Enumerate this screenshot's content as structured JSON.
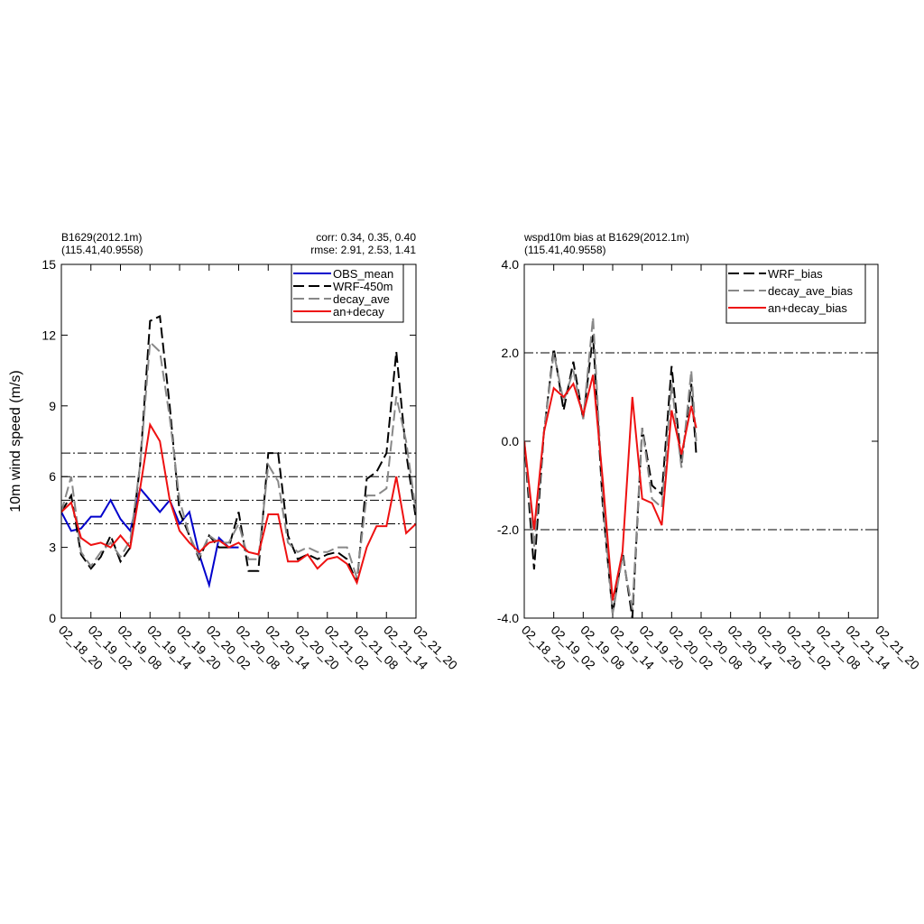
{
  "chart_data": [
    {
      "type": "line",
      "title_lines": [
        "B1629(2012.1m)",
        "(115.41,40.9558)"
      ],
      "stats_lines": [
        "corr:  0.34, 0.35, 0.40",
        "rmse: 2.91, 2.53, 1.41"
      ],
      "y_label": "10m wind speed (m/s)",
      "x": [
        0,
        2,
        4,
        6,
        8,
        10,
        12,
        14,
        16,
        18,
        20,
        22,
        24,
        26,
        28,
        30,
        32,
        34,
        36,
        38,
        40,
        42,
        44,
        46,
        48,
        50,
        52,
        54,
        56,
        58,
        60,
        62,
        64,
        66,
        68,
        70,
        72
      ],
      "xlim": [
        0,
        72
      ],
      "xticks": [
        {
          "value": 0,
          "label": "02_18_20"
        },
        {
          "value": 6,
          "label": "02_19_02"
        },
        {
          "value": 12,
          "label": "02_19_08"
        },
        {
          "value": 18,
          "label": "02_19_14"
        },
        {
          "value": 24,
          "label": "02_19_20"
        },
        {
          "value": 30,
          "label": "02_20_02"
        },
        {
          "value": 36,
          "label": "02_20_08"
        },
        {
          "value": 42,
          "label": "02_20_14"
        },
        {
          "value": 48,
          "label": "02_20_20"
        },
        {
          "value": 54,
          "label": "02_21_02"
        },
        {
          "value": 60,
          "label": "02_21_08"
        },
        {
          "value": 66,
          "label": "02_21_14"
        },
        {
          "value": 72,
          "label": "02_21_20"
        }
      ],
      "ylim": [
        0,
        15
      ],
      "yticks": [
        0,
        3,
        6,
        9,
        12,
        15
      ],
      "hlines": [
        4,
        5,
        6,
        7
      ],
      "legend": "upper right",
      "series": [
        {
          "name": "OBS_mean",
          "color": "#0000cc",
          "dash": "solid",
          "values": [
            4.5,
            3.7,
            3.8,
            4.3,
            4.3,
            5.0,
            4.2,
            3.7,
            5.5,
            5.0,
            4.5,
            5.0,
            4.0,
            4.5,
            2.7,
            1.4,
            3.4,
            3.0,
            3.0,
            null,
            null,
            null,
            null,
            null,
            null,
            null,
            null,
            null,
            null,
            null,
            null,
            null,
            null,
            null,
            null,
            null,
            null
          ]
        },
        {
          "name": "WRF-450m",
          "color": "#000000",
          "dash": "dashed",
          "values": [
            4.5,
            5.2,
            2.7,
            2.1,
            2.6,
            3.5,
            2.4,
            3.0,
            6.5,
            12.6,
            12.8,
            9.0,
            4.5,
            3.5,
            2.5,
            3.5,
            3.0,
            3.0,
            4.5,
            2.0,
            2.0,
            7.0,
            7.0,
            3.5,
            2.5,
            2.7,
            2.5,
            2.7,
            2.8,
            2.5,
            1.5,
            5.9,
            6.2,
            7.0,
            11.3,
            7.0,
            4.2
          ]
        },
        {
          "name": "decay_ave",
          "color": "#888888",
          "dash": "dashed",
          "values": [
            4.5,
            6.0,
            2.8,
            2.2,
            2.8,
            3.2,
            2.6,
            3.3,
            6.5,
            11.7,
            11.3,
            8.5,
            5.0,
            3.5,
            2.6,
            3.5,
            3.2,
            3.2,
            4.0,
            2.5,
            2.5,
            6.5,
            5.8,
            3.2,
            2.8,
            3.0,
            2.8,
            2.8,
            3.0,
            3.0,
            1.7,
            5.2,
            5.2,
            5.5,
            9.4,
            7.5,
            4.5
          ]
        },
        {
          "name": "an+decay",
          "color": "#ee1111",
          "dash": "solid",
          "values": [
            4.5,
            4.9,
            3.4,
            3.1,
            3.2,
            3.0,
            3.5,
            3.0,
            5.5,
            8.2,
            7.5,
            5.0,
            3.7,
            3.2,
            2.8,
            3.2,
            3.3,
            3.0,
            3.2,
            2.8,
            2.7,
            4.4,
            4.4,
            2.4,
            2.4,
            2.7,
            2.1,
            2.5,
            2.6,
            2.3,
            1.5,
            3.0,
            3.9,
            3.9,
            6.0,
            3.6,
            4.0
          ]
        }
      ]
    },
    {
      "type": "line",
      "title_lines": [
        "wspd10m bias at B1629(2012.1m)",
        "(115.41,40.9558)"
      ],
      "x": [
        0,
        2,
        4,
        6,
        8,
        10,
        12,
        14,
        16,
        18,
        20,
        22,
        24,
        26,
        28,
        30,
        32,
        34,
        35
      ],
      "xlim": [
        0,
        72
      ],
      "xticks": [
        {
          "value": 0,
          "label": "02_18_20"
        },
        {
          "value": 6,
          "label": "02_19_02"
        },
        {
          "value": 12,
          "label": "02_19_08"
        },
        {
          "value": 18,
          "label": "02_19_14"
        },
        {
          "value": 24,
          "label": "02_19_20"
        },
        {
          "value": 30,
          "label": "02_20_02"
        },
        {
          "value": 36,
          "label": "02_20_08"
        },
        {
          "value": 42,
          "label": "02_20_14"
        },
        {
          "value": 48,
          "label": "02_20_20"
        },
        {
          "value": 54,
          "label": "02_21_02"
        },
        {
          "value": 60,
          "label": "02_21_08"
        },
        {
          "value": 66,
          "label": "02_21_14"
        },
        {
          "value": 72,
          "label": "02_21_20"
        }
      ],
      "ylim": [
        -4,
        4
      ],
      "yticks": [
        {
          "value": -4,
          "label": "-4.0"
        },
        {
          "value": -2,
          "label": "-2.0"
        },
        {
          "value": 0,
          "label": "0.0"
        },
        {
          "value": 2,
          "label": "2.0"
        },
        {
          "value": 4,
          "label": "4.0"
        }
      ],
      "hlines": [
        -2,
        2
      ],
      "legend": "upper right",
      "series": [
        {
          "name": "WRF_bias",
          "color": "#000000",
          "dash": "dashed",
          "values": [
            0,
            -2.9,
            0.2,
            2.1,
            0.7,
            1.8,
            0.5,
            2.4,
            -1.5,
            -3.9,
            -2.5,
            -4.0,
            0.3,
            -1.0,
            -1.2,
            1.7,
            -0.5,
            1.3,
            -0.3
          ]
        },
        {
          "name": "decay_ave_bias",
          "color": "#888888",
          "dash": "dashed",
          "values": [
            0,
            -2.4,
            0.2,
            2.0,
            0.9,
            1.6,
            0.5,
            2.8,
            -1.3,
            -3.9,
            -2.6,
            -3.8,
            0.3,
            -1.3,
            -1.5,
            1.3,
            -0.6,
            1.6,
            0.0
          ]
        },
        {
          "name": "an+decay_bias",
          "color": "#ee1111",
          "dash": "solid",
          "values": [
            0,
            -2.0,
            0.2,
            1.2,
            1.0,
            1.3,
            0.6,
            1.5,
            -0.9,
            -3.6,
            -2.5,
            1.0,
            -1.3,
            -1.4,
            -1.9,
            0.7,
            -0.3,
            0.8,
            0.3
          ]
        }
      ]
    }
  ]
}
